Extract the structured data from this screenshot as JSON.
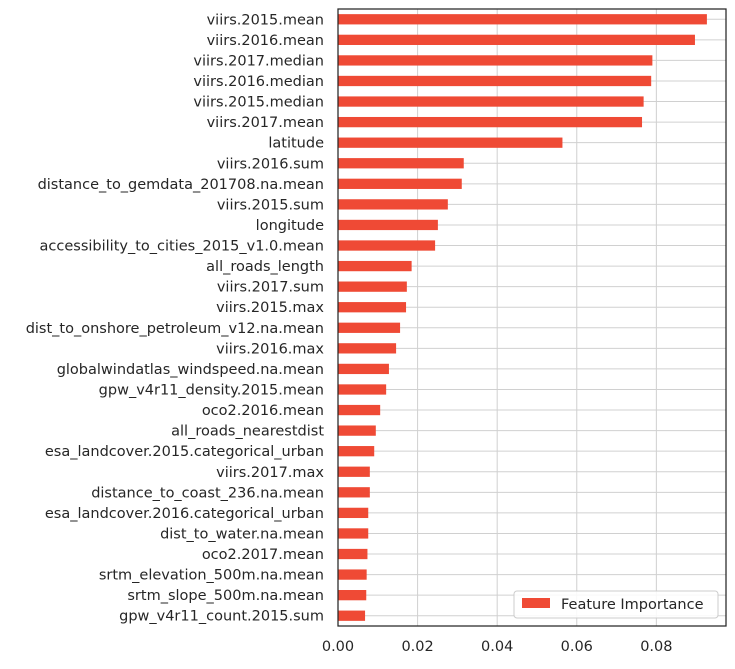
{
  "chart_data": {
    "type": "bar",
    "orientation": "horizontal",
    "categories": [
      "viirs.2015.mean",
      "viirs.2016.mean",
      "viirs.2017.median",
      "viirs.2016.median",
      "viirs.2015.median",
      "viirs.2017.mean",
      "latitude",
      "viirs.2016.sum",
      "distance_to_gemdata_201708.na.mean",
      "viirs.2015.sum",
      "longitude",
      "accessibility_to_cities_2015_v1.0.mean",
      "all_roads_length",
      "viirs.2017.sum",
      "viirs.2015.max",
      "dist_to_onshore_petroleum_v12.na.mean",
      "viirs.2016.max",
      "globalwindatlas_windspeed.na.mean",
      "gpw_v4r11_density.2015.mean",
      "oco2.2016.mean",
      "all_roads_nearestdist",
      "esa_landcover.2015.categorical_urban",
      "viirs.2017.max",
      "distance_to_coast_236.na.mean",
      "esa_landcover.2016.categorical_urban",
      "dist_to_water.na.mean",
      "oco2.2017.mean",
      "srtm_elevation_500m.na.mean",
      "srtm_slope_500m.na.mean",
      "gpw_v4r11_count.2015.sum"
    ],
    "series": [
      {
        "name": "Feature Importance",
        "color": "#ef4a35",
        "values": [
          0.0927,
          0.0897,
          0.079,
          0.0787,
          0.0768,
          0.0764,
          0.0564,
          0.0316,
          0.0311,
          0.0276,
          0.0251,
          0.0244,
          0.0185,
          0.0173,
          0.0171,
          0.0156,
          0.0146,
          0.0128,
          0.0121,
          0.0106,
          0.0095,
          0.0091,
          0.008,
          0.008,
          0.0076,
          0.0076,
          0.0074,
          0.0072,
          0.0071,
          0.0068
        ]
      }
    ],
    "xlim": [
      0,
      0.0975
    ],
    "xticks": [
      "0.00",
      "0.02",
      "0.04",
      "0.06",
      "0.08"
    ],
    "xtick_values": [
      0,
      0.02,
      0.04,
      0.06,
      0.08
    ],
    "grid": true,
    "legend_position": "lower right",
    "title": "",
    "xlabel": "",
    "ylabel": ""
  }
}
